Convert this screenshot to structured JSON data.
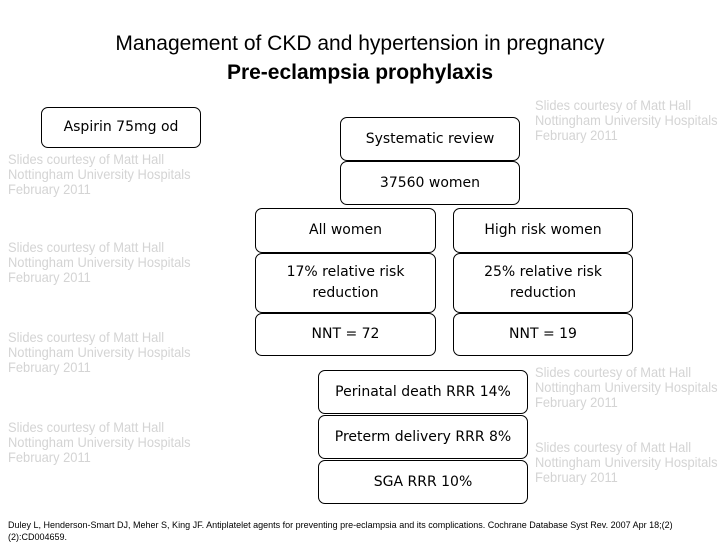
{
  "watermark": "Slides courtesy of Matt Hall\nNottingham University Hospitals\nFebruary 2011",
  "title": "Management of CKD and hypertension in pregnancy",
  "subtitle": "Pre-eclampsia prophylaxis",
  "boxes": {
    "aspirin": "Aspirin 75mg od",
    "review": "Systematic review",
    "women": "37560 women",
    "all_women": "All women",
    "high_risk": "High risk women",
    "all_rrr": "17% relative risk reduction",
    "high_rrr": "25% relative risk reduction",
    "all_nnt": "NNT = 72",
    "high_nnt": "NNT = 19",
    "perinatal": "Perinatal death RRR 14%",
    "preterm": "Preterm delivery RRR 8%",
    "sga": "SGA RRR 10%"
  },
  "citation": "Duley L, Henderson-Smart DJ, Meher S, King JF. Antiplatelet agents for preventing pre-eclampsia and its complications. Cochrane Database Syst Rev. 2007 Apr 18;(2)(2):CD004659."
}
